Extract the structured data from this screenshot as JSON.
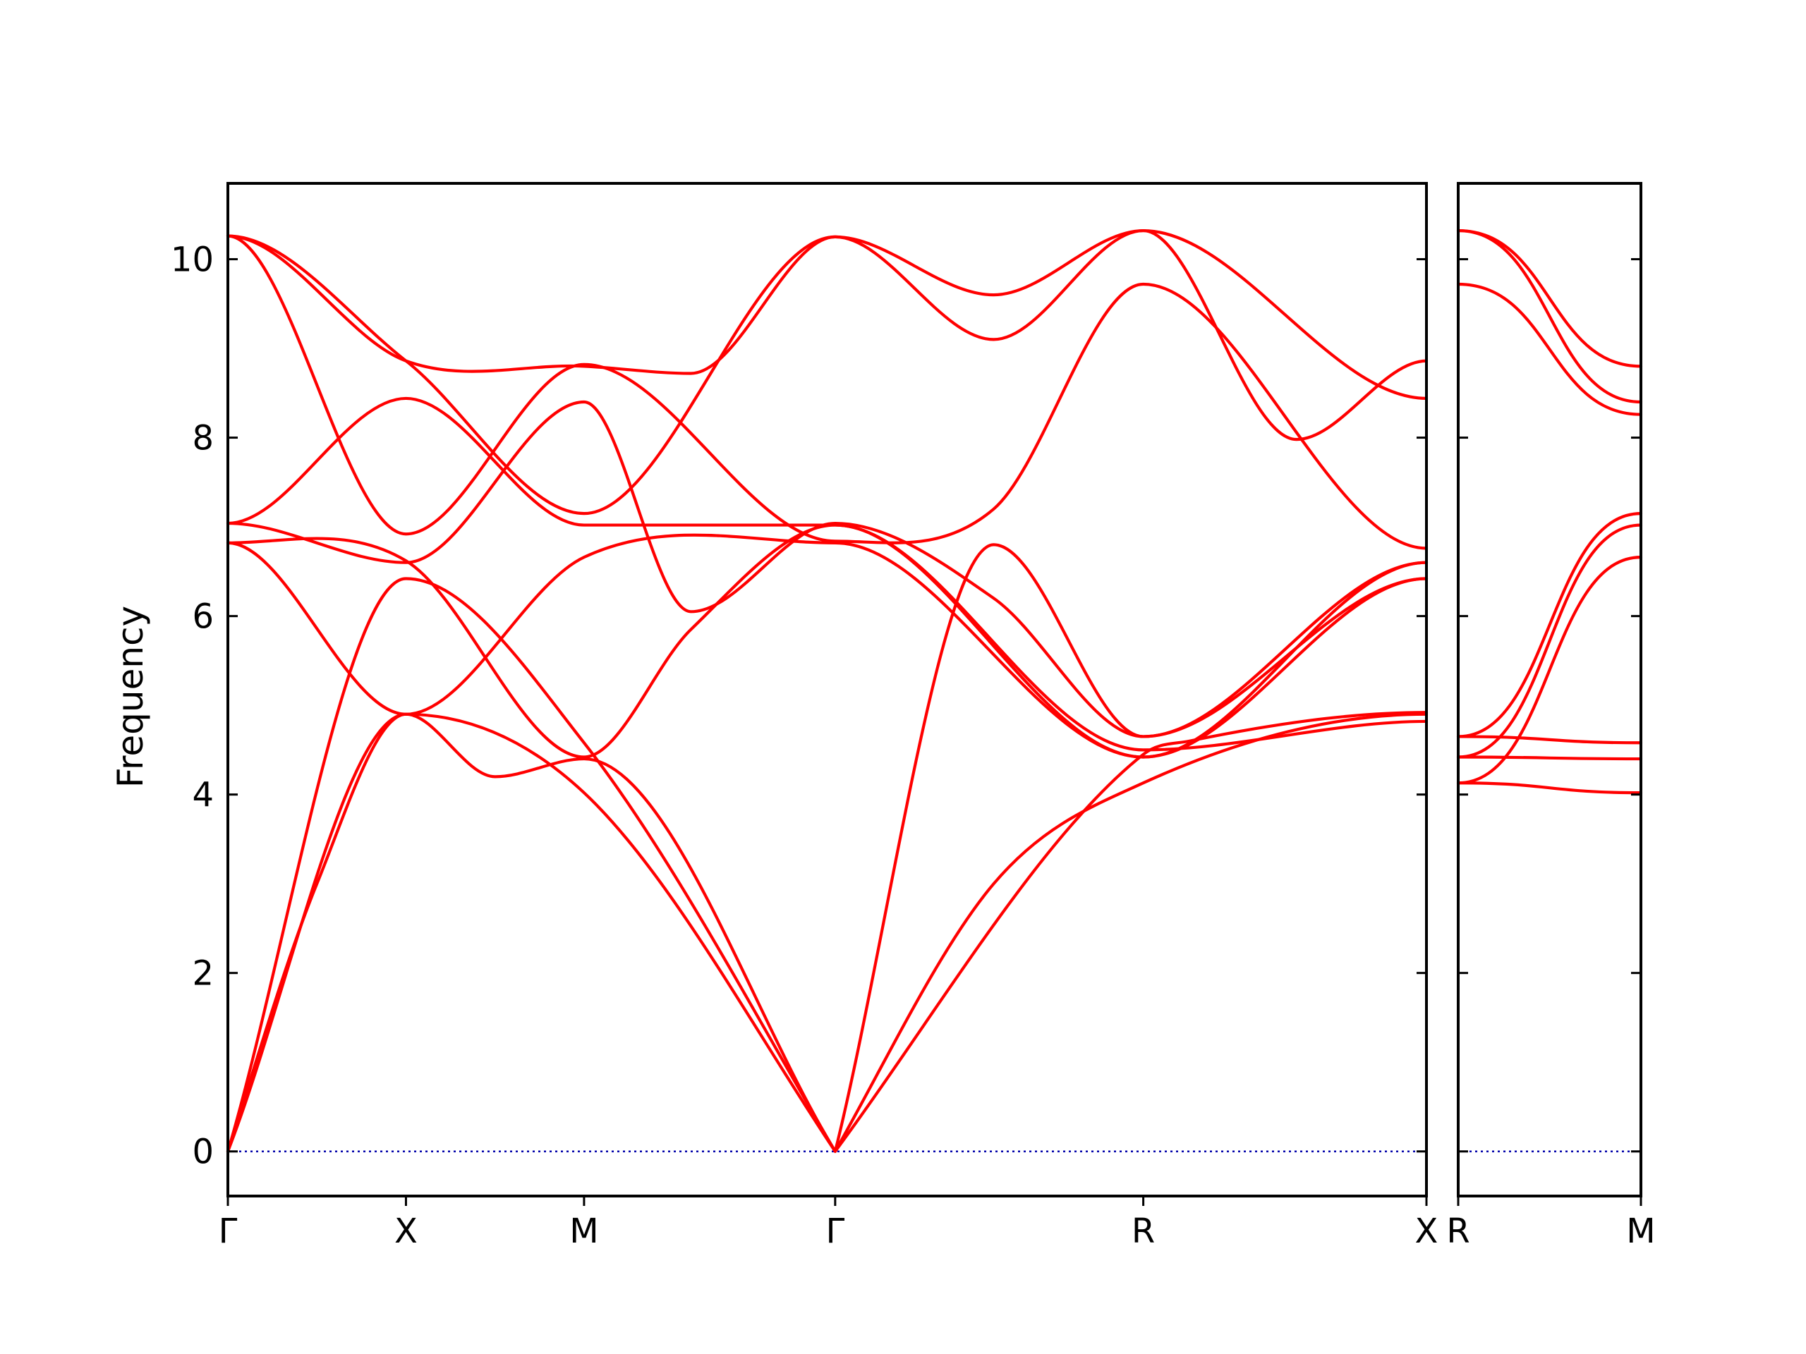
{
  "chart_data": {
    "type": "line",
    "title": "",
    "ylabel": "Frequency",
    "ylim": [
      -0.5,
      10.85
    ],
    "yticks": [
      0,
      2,
      4,
      6,
      8,
      10
    ],
    "grid": false,
    "colors": {
      "bands": "#ff0000",
      "zero_line": "#0000aa",
      "axes": "#000000"
    },
    "panels": [
      {
        "xlim": [
          0,
          6.73
        ],
        "xticks": [
          {
            "x": 0,
            "label": "Γ"
          },
          {
            "x": 1.0,
            "label": "X"
          },
          {
            "x": 2.0,
            "label": "M"
          },
          {
            "x": 3.41,
            "label": "Γ"
          },
          {
            "x": 5.14,
            "label": "R"
          },
          {
            "x": 6.73,
            "label": "X"
          }
        ],
        "series": [
          {
            "x": [
              0,
              1.0,
              2.0,
              3.41,
              4.3,
              5.14,
              6.73
            ],
            "values": [
              0,
              4.9,
              4.02,
              0,
              3.0,
              4.13,
              4.9
            ]
          },
          {
            "x": [
              0,
              0.5,
              1.0,
              1.5,
              2.0,
              3.41,
              5.14,
              5.4,
              6.73
            ],
            "values": [
              0,
              3.0,
              4.9,
              4.2,
              4.4,
              0,
              4.45,
              4.6,
              4.92
            ]
          },
          {
            "x": [
              0,
              1.0,
              2.0,
              3.41,
              4.3,
              5.14,
              6.73
            ],
            "values": [
              0,
              6.42,
              4.58,
              0,
              6.8,
              4.65,
              6.6
            ]
          },
          {
            "x": [
              0,
              1.0,
              2.0,
              3.41,
              5.14,
              6.73
            ],
            "values": [
              6.82,
              4.9,
              6.66,
              6.82,
              4.42,
              6.42
            ]
          },
          {
            "x": [
              0,
              1.0,
              2.0,
              2.6,
              3.41,
              5.14,
              6.73
            ],
            "values": [
              6.82,
              6.62,
              4.42,
              5.85,
              7.02,
              4.5,
              4.82
            ]
          },
          {
            "x": [
              0,
              1.0,
              2.0,
              2.6,
              3.41,
              4.3,
              5.14,
              6.73
            ],
            "values": [
              7.04,
              6.6,
              8.4,
              6.05,
              7.04,
              6.2,
              4.65,
              6.42
            ]
          },
          {
            "x": [
              0,
              1.0,
              2.0,
              3.41,
              5.14,
              6.73
            ],
            "values": [
              7.04,
              8.44,
              7.02,
              7.02,
              4.42,
              6.6
            ]
          },
          {
            "x": [
              0,
              1.0,
              2.0,
              3.41,
              4.3,
              5.14,
              6.73
            ],
            "values": [
              10.26,
              6.92,
              8.82,
              6.84,
              7.2,
              9.72,
              6.76
            ]
          },
          {
            "x": [
              0,
              1.0,
              2.0,
              3.41,
              4.3,
              5.14,
              6.73
            ],
            "values": [
              10.26,
              8.86,
              7.15,
              10.25,
              9.1,
              10.32,
              8.44
            ]
          },
          {
            "x": [
              0,
              1.0,
              2.0,
              2.6,
              3.41,
              4.3,
              5.14,
              6.0,
              6.73
            ],
            "values": [
              10.26,
              8.86,
              8.8,
              8.72,
              10.25,
              9.6,
              10.32,
              7.98,
              8.86
            ]
          }
        ]
      },
      {
        "xlim": [
          0,
          1.0
        ],
        "xticks": [
          {
            "x": 0,
            "label": "R"
          },
          {
            "x": 1.0,
            "label": "M"
          }
        ],
        "series": [
          {
            "x": [
              0,
              1.0
            ],
            "values": [
              4.13,
              4.02
            ]
          },
          {
            "x": [
              0,
              1.0
            ],
            "values": [
              4.42,
              4.4
            ]
          },
          {
            "x": [
              0,
              1.0
            ],
            "values": [
              4.65,
              4.58
            ]
          },
          {
            "x": [
              0,
              1.0
            ],
            "values": [
              4.13,
              6.66
            ]
          },
          {
            "x": [
              0,
              1.0
            ],
            "values": [
              4.42,
              7.02
            ]
          },
          {
            "x": [
              0,
              1.0
            ],
            "values": [
              4.65,
              7.15
            ]
          },
          {
            "x": [
              0,
              1.0
            ],
            "values": [
              9.72,
              8.26
            ]
          },
          {
            "x": [
              0,
              1.0
            ],
            "values": [
              10.32,
              8.4
            ]
          },
          {
            "x": [
              0,
              1.0
            ],
            "values": [
              10.32,
              8.8
            ]
          }
        ]
      }
    ]
  }
}
